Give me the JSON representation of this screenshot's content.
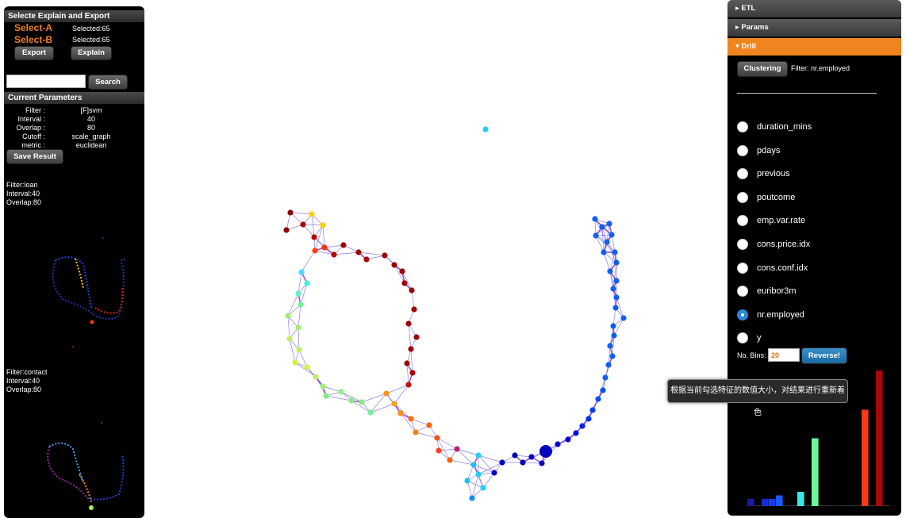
{
  "left_panel": {
    "header": "Selecte Explain and Export",
    "select_a": {
      "label": "Select-A",
      "count": "Selected:65"
    },
    "select_b": {
      "label": "Select-B",
      "count": "Selected:65"
    },
    "export_label": "Export",
    "explain_label": "Explain",
    "search_value": "",
    "search_label": "Search",
    "params_header": "Current Parameters",
    "params": [
      {
        "key": "Filter :",
        "value": "[F]svm"
      },
      {
        "key": "Interval :",
        "value": "40"
      },
      {
        "key": "Overlap :",
        "value": "80"
      },
      {
        "key": "Cutoff :",
        "value": "scale_graph"
      },
      {
        "key": "metric :",
        "value": "euclidean"
      }
    ],
    "save_label": "Save Result",
    "mini1": {
      "filter": "Filter:loan",
      "interval": "Interval:40",
      "overlap": "Overlap:80"
    },
    "mini2": {
      "filter": "Filter:contact",
      "interval": "Interval:40",
      "overlap": "Overlap:80"
    }
  },
  "right_panel": {
    "sections": [
      "ETL",
      "Params",
      "Drill"
    ],
    "clustering_label": "Clustering",
    "filter_text": "Filter: nr.employed",
    "features": [
      "duration_mins",
      "pdays",
      "previous",
      "poutcome",
      "emp.var.rate",
      "cons.price.idx",
      "cons.conf.idx",
      "euribor3m",
      "nr.employed",
      "y"
    ],
    "selected_feature": "nr.employed",
    "bins_label": "No. Bins:",
    "bins_value": "20",
    "reverse_label": "Reverse!",
    "histogram": [
      {
        "value": 2,
        "color": "#1a1aa8"
      },
      {
        "value": 0,
        "color": "#1a1aa8"
      },
      {
        "value": 2,
        "color": "#1a2ad8"
      },
      {
        "value": 2,
        "color": "#1a3ae8"
      },
      {
        "value": 3,
        "color": "#1a5af8"
      },
      {
        "value": 0,
        "color": "#1a7af8"
      },
      {
        "value": 0,
        "color": "#1a9af8"
      },
      {
        "value": 4,
        "color": "#3ae8e8"
      },
      {
        "value": 0,
        "color": "#5af8c8"
      },
      {
        "value": 19,
        "color": "#6af898"
      },
      {
        "value": 0,
        "color": "#9af868"
      },
      {
        "value": 0,
        "color": "#d8f848"
      },
      {
        "value": 0,
        "color": "#f8e828"
      },
      {
        "value": 0,
        "color": "#f8b818"
      },
      {
        "value": 0,
        "color": "#f88818"
      },
      {
        "value": 0,
        "color": "#f85818"
      },
      {
        "value": 27,
        "color": "#f83818"
      },
      {
        "value": 0,
        "color": "#d81818"
      },
      {
        "value": 38,
        "color": "#a80808"
      },
      {
        "value": 0,
        "color": "#880000"
      }
    ]
  },
  "tooltip": "根据当前勾选特征的数值大小，对结果进行重新着色"
}
